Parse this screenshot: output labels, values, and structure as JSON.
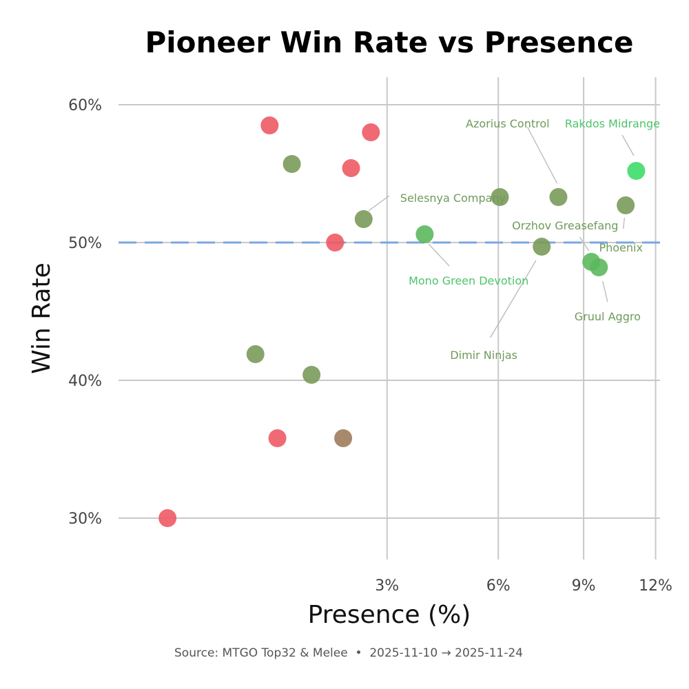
{
  "chart_data": {
    "type": "scatter",
    "title": "Pioneer Win Rate vs Presence",
    "xlabel": "Presence (%)",
    "ylabel": "Win Rate",
    "caption": "Source: MTGO Top32 & Melee  •  2025-11-10 → 2025-11-24",
    "x_scale": "sqrt",
    "xlim": [
      0,
      12.2
    ],
    "ylim": [
      27,
      62
    ],
    "x_ticks": [
      3,
      6,
      9,
      12
    ],
    "x_tick_labels": [
      "3%",
      "6%",
      "9%",
      "12%"
    ],
    "y_ticks": [
      30,
      40,
      50,
      60
    ],
    "y_tick_labels": [
      "30%",
      "40%",
      "50%",
      "60%"
    ],
    "reference_line": {
      "y": 50,
      "style": "dashed",
      "color": "#7aa6e0"
    },
    "grid": true,
    "colors": {
      "red": "#ee5a64",
      "olive": "#7a9a5a",
      "green_mid": "#5cb85c",
      "green_bright": "#3ddc6a",
      "brown": "#a07c5c",
      "label_olive": "#6f9a5a",
      "label_green": "#4cc46a"
    },
    "points": [
      {
        "x": 0.1,
        "y": 30.0,
        "color": "#ee5a64"
      },
      {
        "x": 0.95,
        "y": 58.5,
        "color": "#ee5a64"
      },
      {
        "x": 1.05,
        "y": 35.8,
        "color": "#ee5a64"
      },
      {
        "x": 0.78,
        "y": 41.9,
        "color": "#7a9a5a"
      },
      {
        "x": 1.25,
        "y": 55.7,
        "color": "#7a9a5a"
      },
      {
        "x": 1.55,
        "y": 40.4,
        "color": "#7a9a5a"
      },
      {
        "x": 1.95,
        "y": 50.0,
        "color": "#ee5a64"
      },
      {
        "x": 2.1,
        "y": 35.8,
        "color": "#a07c5c"
      },
      {
        "x": 2.25,
        "y": 55.4,
        "color": "#ee5a64"
      },
      {
        "x": 2.5,
        "y": 51.7,
        "color": "#7a9a5a",
        "label": "Selesnya Company"
      },
      {
        "x": 2.65,
        "y": 58.0,
        "color": "#ee5a64"
      },
      {
        "x": 3.9,
        "y": 50.6,
        "color": "#5cb85c",
        "label": "Mono Green Devotion"
      },
      {
        "x": 6.05,
        "y": 53.3,
        "color": "#7a9a5a"
      },
      {
        "x": 7.45,
        "y": 49.7,
        "color": "#7a9a5a",
        "label": "Dimir Ninjas"
      },
      {
        "x": 8.05,
        "y": 53.3,
        "color": "#7a9a5a",
        "label": "Azorius Control"
      },
      {
        "x": 9.3,
        "y": 48.6,
        "color": "#5cb85c",
        "label": "Orzhov Greasefang"
      },
      {
        "x": 9.6,
        "y": 48.2,
        "color": "#5cb85c",
        "label": "Gruul Aggro"
      },
      {
        "x": 10.7,
        "y": 52.7,
        "color": "#7a9a5a",
        "label": "Phoenix"
      },
      {
        "x": 11.15,
        "y": 55.2,
        "color": "#3ddc6a",
        "label": "Rakdos Midrange"
      }
    ],
    "annotations": [
      {
        "text": "Selesnya Company",
        "x": 3.3,
        "y": 53.2,
        "anchor": "start",
        "color": "#6f9a5a",
        "line_from": [
          2.6,
          52.3
        ],
        "line_to": [
          3.05,
          53.4
        ]
      },
      {
        "text": "Mono Green Devotion",
        "x": 5.1,
        "y": 47.2,
        "anchor": "middle",
        "color": "#4cc46a",
        "line_from": [
          4.0,
          49.9
        ],
        "line_to": [
          4.55,
          48.3
        ]
      },
      {
        "text": "Dimir Ninjas",
        "x": 5.55,
        "y": 41.8,
        "anchor": "middle",
        "color": "#6f9a5a",
        "line_from": [
          7.25,
          48.7
        ],
        "line_to": [
          5.75,
          43.1
        ]
      },
      {
        "text": "Azorius Control",
        "x": 6.3,
        "y": 58.6,
        "anchor": "middle",
        "color": "#6f9a5a",
        "line_from": [
          6.95,
          58.4
        ],
        "line_to": [
          8.0,
          54.3
        ]
      },
      {
        "text": "Orzhov Greasefang",
        "x": 8.3,
        "y": 51.2,
        "anchor": "middle",
        "color": "#6f9a5a",
        "line_from": [
          8.85,
          50.4
        ],
        "line_to": [
          9.2,
          49.4
        ]
      },
      {
        "text": "Gruul Aggro",
        "x": 9.95,
        "y": 44.6,
        "anchor": "middle",
        "color": "#6f9a5a",
        "line_from": [
          9.75,
          47.2
        ],
        "line_to": [
          9.95,
          45.7
        ]
      },
      {
        "text": "Phoenix",
        "x": 10.5,
        "y": 49.6,
        "anchor": "middle",
        "color": "#6f9a5a",
        "line_from": [
          10.65,
          51.8
        ],
        "line_to": [
          10.6,
          51.0
        ]
      },
      {
        "text": "Rakdos Midrange",
        "x": 10.15,
        "y": 58.6,
        "anchor": "middle",
        "color": "#4cc46a",
        "line_from": [
          10.55,
          57.8
        ],
        "line_to": [
          11.05,
          56.3
        ]
      }
    ]
  }
}
